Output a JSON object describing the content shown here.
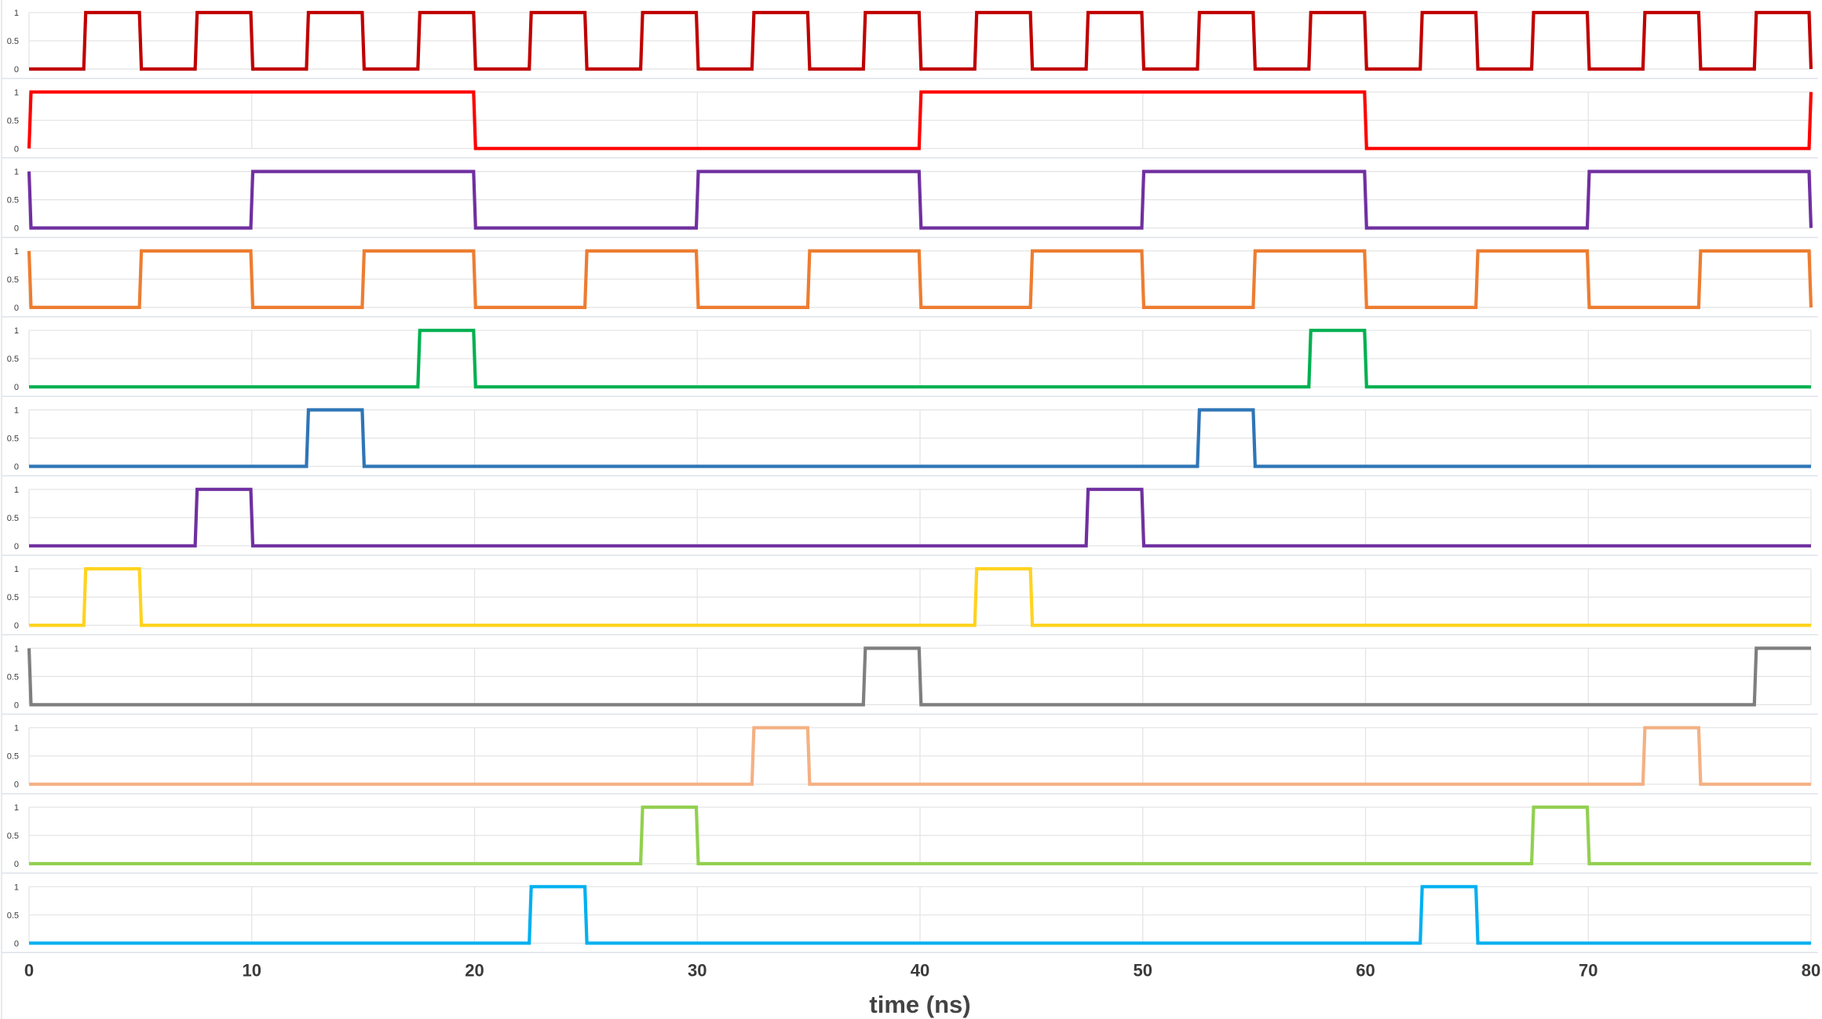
{
  "chart_data": {
    "type": "line",
    "subtype": "digital timing diagram (stacked square-wave panels)",
    "xlabel": "time (ns)",
    "xlim": [
      0,
      80
    ],
    "x_ticks": [
      "0",
      "10",
      "20",
      "30",
      "40",
      "50",
      "60",
      "70",
      "80"
    ],
    "ylim": [
      0,
      1
    ],
    "y_ticks": [
      "0",
      "0.5",
      "1"
    ],
    "grid": true,
    "legend": "none",
    "series": [
      {
        "color": "#c00000",
        "start_value": 0,
        "transitions": [
          2.5,
          5,
          7.5,
          10,
          12.5,
          15,
          17.5,
          20,
          22.5,
          25,
          27.5,
          30,
          32.5,
          35,
          37.5,
          40,
          42.5,
          45,
          47.5,
          50,
          52.5,
          55,
          57.5,
          60,
          62.5,
          65,
          67.5,
          70,
          72.5,
          75,
          77.5,
          80
        ]
      },
      {
        "color": "#ff0000",
        "start_value": 0,
        "transitions": [
          0,
          20,
          40,
          60,
          80
        ]
      },
      {
        "color": "#7030a0",
        "start_value": 1,
        "transitions": [
          0,
          10,
          20,
          30,
          40,
          50,
          60,
          70,
          80
        ]
      },
      {
        "color": "#ed7d31",
        "start_value": 1,
        "transitions": [
          0,
          5,
          10,
          15,
          20,
          25,
          30,
          35,
          40,
          45,
          50,
          55,
          60,
          65,
          70,
          75,
          80
        ]
      },
      {
        "color": "#00b050",
        "start_value": 0,
        "transitions": [
          17.5,
          20,
          57.5,
          60
        ]
      },
      {
        "color": "#2e75b6",
        "start_value": 0,
        "transitions": [
          12.5,
          15,
          52.5,
          55
        ]
      },
      {
        "color": "#7030a0",
        "start_value": 0,
        "transitions": [
          7.5,
          10,
          47.5,
          50
        ]
      },
      {
        "color": "#ffd320",
        "start_value": 0,
        "transitions": [
          2.5,
          5,
          42.5,
          45
        ]
      },
      {
        "color": "#7f7f7f",
        "start_value": 1,
        "transitions": [
          0,
          37.5,
          40,
          77.5
        ]
      },
      {
        "color": "#f4b183",
        "start_value": 0,
        "transitions": [
          32.5,
          35,
          72.5,
          75
        ]
      },
      {
        "color": "#92d050",
        "start_value": 0,
        "transitions": [
          27.5,
          30,
          67.5,
          70
        ]
      },
      {
        "color": "#00b0f0",
        "start_value": 0,
        "transitions": [
          22.5,
          25,
          62.5,
          65
        ]
      }
    ]
  }
}
